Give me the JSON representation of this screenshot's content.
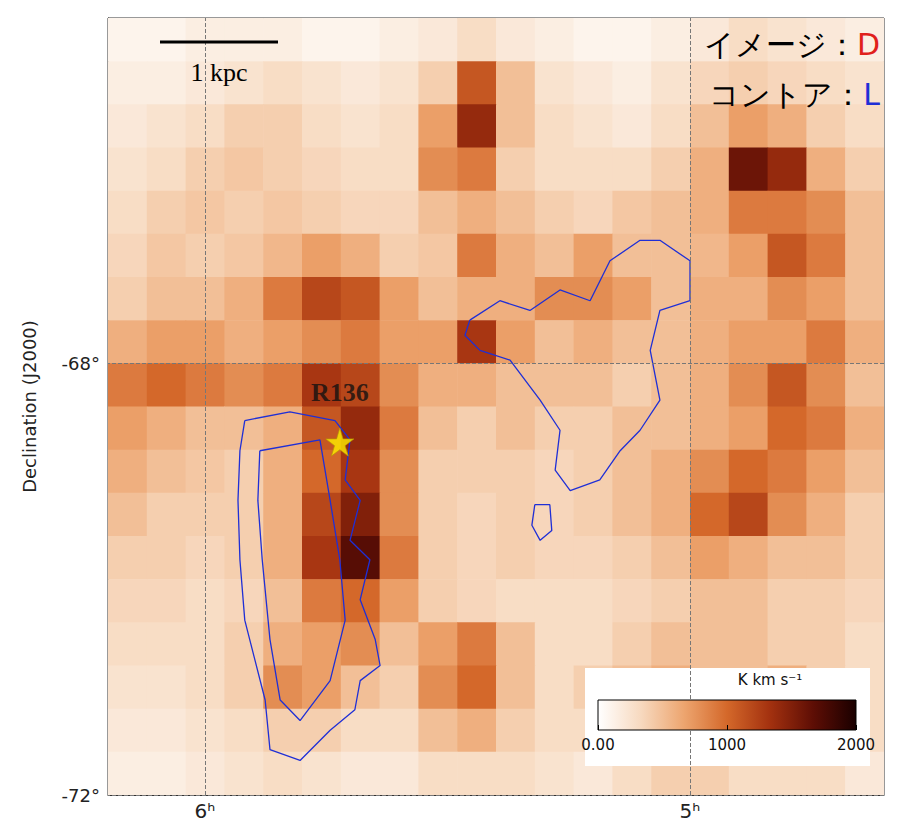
{
  "chart_data": {
    "type": "heatmap",
    "ylabel": "Declination (J2000)",
    "xlim": [
      6.2,
      4.6
    ],
    "xticks": [
      {
        "value": 6,
        "label": "6ʰ"
      },
      {
        "value": 5,
        "label": "5ʰ"
      }
    ],
    "ylim": [
      -72,
      -64.8
    ],
    "yticks": [
      {
        "value": -72,
        "label": "-72°"
      },
      {
        "value": -68,
        "label": "-68°"
      }
    ],
    "grid": true,
    "image": {
      "ra": [
        6.16,
        6.08,
        6.0,
        5.92,
        5.84,
        5.76,
        5.68,
        5.6,
        5.52,
        5.44,
        5.36,
        5.28,
        5.2,
        5.12,
        5.04,
        4.96,
        4.88,
        4.8,
        4.72,
        4.64
      ],
      "dec": [
        -65.0,
        -65.4,
        -65.8,
        -66.2,
        -66.6,
        -67.0,
        -67.4,
        -67.8,
        -68.2,
        -68.6,
        -69.0,
        -69.4,
        -69.8,
        -70.2,
        -70.6,
        -71.0,
        -71.4,
        -71.8
      ],
      "values": [
        [
          100,
          100,
          150,
          150,
          150,
          100,
          100,
          150,
          200,
          300,
          200,
          150,
          100,
          100,
          150,
          200,
          300,
          250,
          200,
          150
        ],
        [
          150,
          150,
          200,
          250,
          300,
          250,
          200,
          250,
          400,
          1100,
          500,
          250,
          200,
          150,
          250,
          350,
          400,
          350,
          300,
          250
        ],
        [
          200,
          250,
          300,
          400,
          400,
          300,
          250,
          300,
          700,
          1400,
          500,
          300,
          250,
          200,
          300,
          500,
          700,
          600,
          400,
          300
        ],
        [
          250,
          300,
          400,
          450,
          400,
          350,
          300,
          300,
          800,
          900,
          400,
          300,
          300,
          300,
          400,
          600,
          1600,
          1400,
          600,
          400
        ],
        [
          300,
          400,
          450,
          400,
          450,
          400,
          350,
          350,
          500,
          600,
          500,
          400,
          350,
          450,
          500,
          600,
          900,
          900,
          800,
          500
        ],
        [
          350,
          450,
          400,
          450,
          550,
          700,
          600,
          400,
          450,
          900,
          600,
          500,
          700,
          500,
          500,
          550,
          700,
          1100,
          900,
          500
        ],
        [
          400,
          500,
          500,
          600,
          900,
          1200,
          1100,
          700,
          500,
          600,
          600,
          800,
          800,
          700,
          500,
          600,
          600,
          800,
          700,
          500
        ],
        [
          600,
          700,
          700,
          600,
          700,
          800,
          900,
          700,
          700,
          1300,
          700,
          500,
          600,
          500,
          500,
          600,
          700,
          700,
          900,
          600
        ],
        [
          900,
          1000,
          900,
          800,
          900,
          1300,
          1200,
          800,
          600,
          600,
          500,
          500,
          500,
          400,
          500,
          600,
          800,
          1100,
          800,
          500
        ],
        [
          700,
          600,
          500,
          500,
          600,
          1100,
          1400,
          900,
          500,
          400,
          500,
          400,
          400,
          500,
          500,
          600,
          700,
          1000,
          900,
          600
        ],
        [
          600,
          500,
          450,
          400,
          600,
          1000,
          1300,
          800,
          400,
          400,
          400,
          350,
          400,
          500,
          600,
          800,
          1000,
          900,
          700,
          500
        ],
        [
          500,
          400,
          400,
          400,
          600,
          1200,
          1500,
          800,
          400,
          350,
          400,
          350,
          400,
          500,
          600,
          1000,
          1200,
          800,
          600,
          400
        ],
        [
          400,
          400,
          350,
          400,
          600,
          1300,
          1700,
          900,
          400,
          350,
          400,
          350,
          350,
          400,
          500,
          700,
          600,
          500,
          500,
          400
        ],
        [
          350,
          350,
          300,
          350,
          500,
          900,
          1000,
          700,
          400,
          350,
          300,
          300,
          300,
          350,
          400,
          500,
          500,
          400,
          400,
          350
        ],
        [
          300,
          300,
          300,
          400,
          600,
          700,
          800,
          500,
          700,
          900,
          500,
          300,
          300,
          400,
          500,
          500,
          500,
          400,
          400,
          300
        ],
        [
          250,
          250,
          300,
          400,
          800,
          700,
          500,
          400,
          800,
          1000,
          500,
          300,
          400,
          500,
          600,
          500,
          500,
          600,
          400,
          300
        ],
        [
          200,
          200,
          250,
          300,
          400,
          400,
          300,
          300,
          500,
          600,
          400,
          300,
          300,
          400,
          700,
          500,
          400,
          500,
          400,
          300
        ],
        [
          150,
          150,
          200,
          250,
          300,
          250,
          200,
          200,
          300,
          300,
          300,
          250,
          200,
          300,
          400,
          400,
          300,
          300,
          300,
          200
        ]
      ]
    },
    "colorbar": {
      "label": "K km s⁻¹",
      "range": [
        0,
        2000
      ],
      "ticks": [
        {
          "value": 0,
          "label": "0.00"
        },
        1000,
        2000
      ],
      "colors": [
        "#ffffff",
        "#f7d9bf",
        "#eda56f",
        "#d4682a",
        "#a3310f",
        "#5e0e05",
        "#1a0000"
      ]
    },
    "contours": {
      "color": "#1f2fd6",
      "paths": [
        [
          [
            5.918,
            -68.53
          ],
          [
            5.825,
            -68.45
          ],
          [
            5.732,
            -68.53
          ],
          [
            5.701,
            -68.71
          ],
          [
            5.711,
            -69.08
          ],
          [
            5.68,
            -69.27
          ],
          [
            5.701,
            -69.64
          ],
          [
            5.66,
            -69.82
          ],
          [
            5.68,
            -70.19
          ],
          [
            5.649,
            -70.56
          ],
          [
            5.639,
            -70.8
          ],
          [
            5.68,
            -70.94
          ],
          [
            5.691,
            -71.21
          ],
          [
            5.742,
            -71.4
          ],
          [
            5.804,
            -71.68
          ],
          [
            5.866,
            -71.58
          ],
          [
            5.876,
            -71.12
          ],
          [
            5.897,
            -70.75
          ],
          [
            5.918,
            -70.38
          ],
          [
            5.928,
            -69.82
          ],
          [
            5.932,
            -69.27
          ],
          [
            5.928,
            -68.81
          ],
          [
            5.918,
            -68.53
          ]
        ],
        [
          [
            5.887,
            -68.81
          ],
          [
            5.763,
            -68.71
          ],
          [
            5.742,
            -69.27
          ],
          [
            5.722,
            -69.82
          ],
          [
            5.711,
            -70.38
          ],
          [
            5.742,
            -70.94
          ],
          [
            5.804,
            -71.31
          ],
          [
            5.845,
            -71.12
          ],
          [
            5.866,
            -70.56
          ],
          [
            5.882,
            -69.82
          ],
          [
            5.891,
            -69.27
          ],
          [
            5.887,
            -68.81
          ]
        ],
        [
          [
            5.454,
            -67.6
          ],
          [
            5.392,
            -67.42
          ],
          [
            5.33,
            -67.51
          ],
          [
            5.268,
            -67.32
          ],
          [
            5.206,
            -67.42
          ],
          [
            5.165,
            -67.05
          ],
          [
            5.103,
            -66.86
          ],
          [
            5.062,
            -66.86
          ],
          [
            5.0,
            -67.05
          ],
          [
            5.0,
            -67.42
          ],
          [
            5.062,
            -67.51
          ],
          [
            5.082,
            -67.88
          ],
          [
            5.062,
            -68.34
          ],
          [
            5.103,
            -68.62
          ],
          [
            5.144,
            -68.81
          ],
          [
            5.186,
            -69.08
          ],
          [
            5.247,
            -69.18
          ],
          [
            5.278,
            -68.99
          ],
          [
            5.268,
            -68.62
          ],
          [
            5.309,
            -68.34
          ],
          [
            5.371,
            -67.97
          ],
          [
            5.433,
            -67.88
          ],
          [
            5.464,
            -67.74
          ],
          [
            5.454,
            -67.6
          ]
        ],
        [
          [
            5.32,
            -69.31
          ],
          [
            5.289,
            -69.31
          ],
          [
            5.285,
            -69.55
          ],
          [
            5.309,
            -69.64
          ],
          [
            5.326,
            -69.5
          ],
          [
            5.32,
            -69.31
          ]
        ]
      ]
    },
    "points": [
      {
        "label": "R136",
        "ra": 5.722,
        "dec": -68.73,
        "color": "#ffee00",
        "marker": "star"
      }
    ],
    "scale_bar": "1 kpc",
    "annotations": [
      {
        "prefix": "イメージ：",
        "key": "D",
        "color": "#e0201b"
      },
      {
        "prefix": "コントア：",
        "key": "L",
        "color": "#1f2fd6"
      }
    ]
  }
}
